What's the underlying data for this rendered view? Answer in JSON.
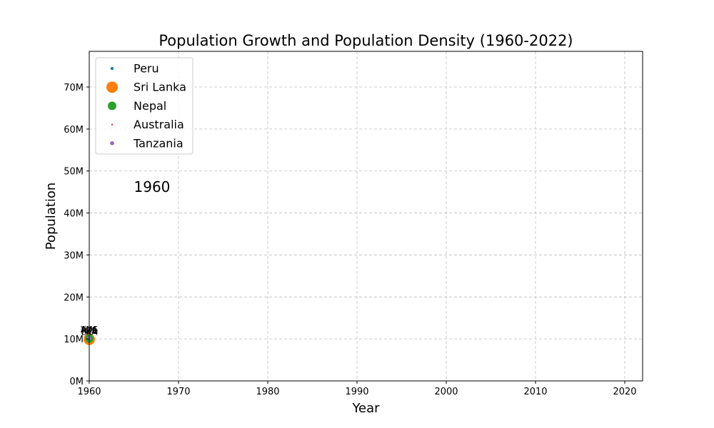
{
  "chart_data": {
    "type": "scatter",
    "title": "Population Growth and Population Density (1960-2022)",
    "xlabel": "Year",
    "ylabel": "Population",
    "xlim": [
      1960,
      2022
    ],
    "ylim": [
      0,
      78500000
    ],
    "x_ticks": [
      1960,
      1970,
      1980,
      1990,
      2000,
      2010,
      2020
    ],
    "y_ticks": [
      0,
      10000000,
      20000000,
      30000000,
      40000000,
      50000000,
      60000000,
      70000000
    ],
    "y_tick_labels": [
      "0M",
      "10M",
      "20M",
      "30M",
      "40M",
      "50M",
      "60M",
      "70M"
    ],
    "grid": true,
    "legend_position": "upper-left",
    "annotation": "1960",
    "series": [
      {
        "name": "Peru",
        "color": "#1f77b4",
        "x": [
          1960
        ],
        "y": [
          10200000
        ],
        "label": "PER",
        "density_rank": 2
      },
      {
        "name": "Sri Lanka",
        "color": "#ff7f0e",
        "x": [
          1960
        ],
        "y": [
          9900000
        ],
        "label": "LKA",
        "density_rank": 5
      },
      {
        "name": "Nepal",
        "color": "#2ca02c",
        "x": [
          1960
        ],
        "y": [
          10100000
        ],
        "label": "NPL",
        "density_rank": 4
      },
      {
        "name": "Australia",
        "color": "#d62728",
        "x": [
          1960
        ],
        "y": [
          10300000
        ],
        "label": "AUS",
        "density_rank": 1
      },
      {
        "name": "Tanzania",
        "color": "#9467bd",
        "x": [
          1960
        ],
        "y": [
          10200000
        ],
        "label": "TZA",
        "density_rank": 3
      }
    ]
  }
}
